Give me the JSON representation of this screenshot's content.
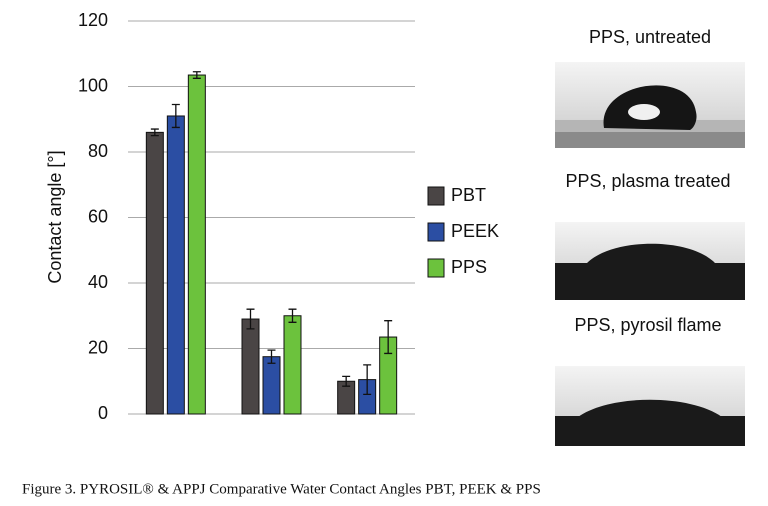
{
  "chart_data": {
    "type": "bar",
    "ylabel": "Contact angle [°]",
    "categories": [
      null,
      null,
      null
    ],
    "series": [
      {
        "name": "PBT",
        "color": "#4a4545",
        "values": [
          86,
          29,
          10
        ],
        "error": [
          1,
          3,
          1.5
        ]
      },
      {
        "name": "PEEK",
        "color": "#2b4ea3",
        "values": [
          91,
          17.5,
          10.5
        ],
        "error": [
          3.5,
          2,
          4.5
        ]
      },
      {
        "name": "PPS",
        "color": "#6cc23d",
        "values": [
          103.5,
          30,
          23.5
        ],
        "error": [
          1,
          2,
          5
        ]
      }
    ],
    "ylim": [
      0,
      120
    ],
    "yticks": [
      0,
      20,
      40,
      60,
      80,
      100,
      120
    ],
    "grid": true,
    "legend": "right"
  },
  "images": [
    {
      "title": "PPS, untreated"
    },
    {
      "title": "PPS, plasma treated"
    },
    {
      "title": "PPS, pyrosil flame"
    }
  ],
  "caption": "Figure 3. PYROSIL® & APPJ Comparative Water Contact Angles PBT, PEEK & PPS"
}
